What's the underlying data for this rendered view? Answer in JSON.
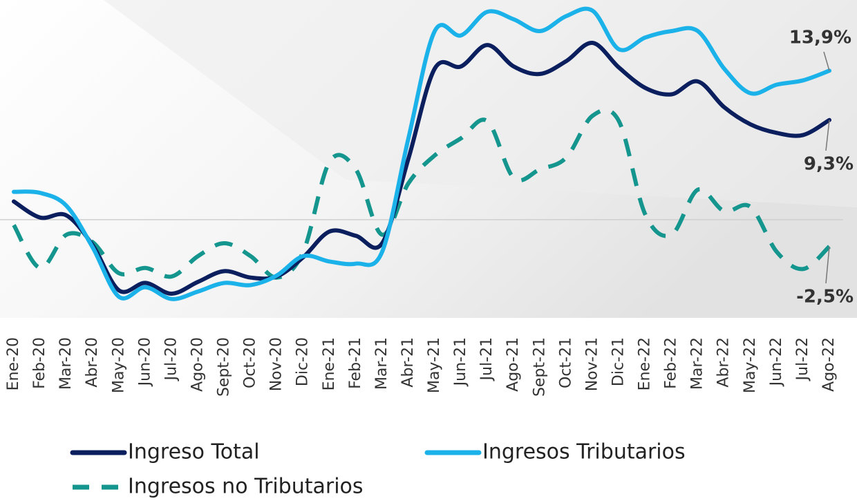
{
  "chart_data": {
    "type": "line",
    "categories": [
      "Ene-20",
      "Feb-20",
      "Mar-20",
      "Abr-20",
      "May-20",
      "Jun-20",
      "Jul-20",
      "Ago-20",
      "Sept-20",
      "Oct-20",
      "Nov-20",
      "Dic-20",
      "Ene-21",
      "Feb-21",
      "Mar-21",
      "Abr-21",
      "May-21",
      "Jun-21",
      "Jul-21",
      "Ago-21",
      "Sept-21",
      "Oct-21",
      "Nov-21",
      "Dic-21",
      "Ene-22",
      "Feb-22",
      "Mar-22",
      "Abr-22",
      "May-22",
      "Jun-22",
      "Jul-22",
      "Ago-22"
    ],
    "ylim": [
      -8,
      20.5
    ],
    "zero_line": true,
    "series": [
      {
        "name": "Ingreso Total",
        "color": "#0b1f5e",
        "line_style": "solid",
        "values": [
          1.7,
          0.2,
          0.4,
          -2.4,
          -6.6,
          -5.9,
          -6.9,
          -5.8,
          -4.8,
          -5.4,
          -5.3,
          -3.5,
          -1.1,
          -1.5,
          -2.2,
          5.7,
          14.1,
          14.3,
          16.3,
          14.3,
          13.6,
          14.8,
          16.5,
          14.2,
          12.3,
          11.7,
          12.9,
          10.5,
          8.9,
          8.1,
          7.9,
          9.3
        ],
        "value_labels": [
          null,
          null,
          null,
          null,
          null,
          null,
          null,
          null,
          null,
          null,
          null,
          null,
          null,
          null,
          null,
          null,
          null,
          null,
          null,
          null,
          null,
          null,
          null,
          null,
          null,
          null,
          null,
          null,
          null,
          null,
          null,
          "9,3%"
        ]
      },
      {
        "name": "Ingresos Tributarios",
        "color": "#1bb2ea",
        "line_style": "solid",
        "values": [
          2.6,
          2.5,
          1.3,
          -2.6,
          -7.2,
          -6.3,
          -7.4,
          -6.7,
          -5.9,
          -6.1,
          -5.2,
          -3.4,
          -3.9,
          -4.1,
          -3.0,
          7.6,
          17.6,
          17.2,
          19.4,
          18.7,
          17.6,
          19.0,
          19.5,
          15.9,
          17.0,
          17.6,
          17.6,
          14.1,
          11.8,
          12.6,
          13.0,
          13.9
        ],
        "value_labels": [
          null,
          null,
          null,
          null,
          null,
          null,
          null,
          null,
          null,
          null,
          null,
          null,
          null,
          null,
          null,
          null,
          null,
          null,
          null,
          null,
          null,
          null,
          null,
          null,
          null,
          null,
          null,
          null,
          null,
          null,
          null,
          "13,9%"
        ]
      },
      {
        "name": "Ingresos no Tributarios",
        "color": "#14968f",
        "line_style": "dashed",
        "values": [
          -0.5,
          -4.5,
          -1.4,
          -2.1,
          -5.0,
          -4.5,
          -5.3,
          -3.4,
          -2.2,
          -3.4,
          -5.4,
          -3.0,
          5.4,
          4.7,
          -1.4,
          3.4,
          6.0,
          7.6,
          9.2,
          3.9,
          4.7,
          5.8,
          9.7,
          9.2,
          0.5,
          -1.4,
          2.8,
          0.8,
          1.2,
          -3.0,
          -4.6,
          -2.5
        ],
        "value_labels": [
          null,
          null,
          null,
          null,
          null,
          null,
          null,
          null,
          null,
          null,
          null,
          null,
          null,
          null,
          null,
          null,
          null,
          null,
          null,
          null,
          null,
          null,
          null,
          null,
          null,
          null,
          null,
          null,
          null,
          null,
          null,
          "-2,5%"
        ]
      }
    ]
  }
}
